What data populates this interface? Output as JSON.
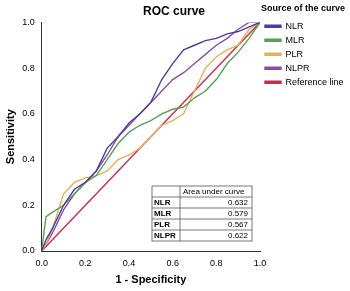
{
  "chart_data": {
    "type": "line",
    "title": "ROC curve",
    "x_label": "1 - Specificity",
    "y_label": "Sensitivity",
    "xlim": [
      0,
      1
    ],
    "ylim": [
      0,
      1
    ],
    "xticks": [
      {
        "value": 0,
        "label": "0.0"
      },
      {
        "value": 0.2,
        "label": "0.2"
      },
      {
        "value": 0.4,
        "label": "0.4"
      },
      {
        "value": 0.6,
        "label": "0.6"
      },
      {
        "value": 0.8,
        "label": "0.8"
      },
      {
        "value": 1,
        "label": "1.0"
      }
    ],
    "yticks": [
      {
        "value": 0,
        "label": "0.0"
      },
      {
        "value": 0.2,
        "label": "0.2"
      },
      {
        "value": 0.4,
        "label": "0.4"
      },
      {
        "value": 0.6,
        "label": "0.6"
      },
      {
        "value": 0.8,
        "label": "0.8"
      },
      {
        "value": 1,
        "label": "1.0"
      }
    ],
    "grid": false,
    "legend": "right",
    "legend_title": "Source of the curve",
    "auc_header": "Area under curve",
    "series": [
      {
        "name": "NLR",
        "color": "#4b3f9e",
        "auc": 0.632,
        "x": [
          0,
          0.02,
          0.05,
          0.1,
          0.15,
          0.2,
          0.25,
          0.3,
          0.35,
          0.4,
          0.45,
          0.5,
          0.55,
          0.6,
          0.65,
          0.7,
          0.75,
          0.8,
          0.85,
          0.9,
          0.95,
          1
        ],
        "values": [
          0,
          0.05,
          0.1,
          0.2,
          0.27,
          0.3,
          0.35,
          0.45,
          0.5,
          0.56,
          0.6,
          0.65,
          0.75,
          0.82,
          0.88,
          0.9,
          0.92,
          0.93,
          0.95,
          0.96,
          0.98,
          1
        ]
      },
      {
        "name": "MLR",
        "color": "#5a9e58",
        "auc": 0.579,
        "x": [
          0,
          0.01,
          0.02,
          0.05,
          0.1,
          0.15,
          0.2,
          0.25,
          0.3,
          0.35,
          0.4,
          0.45,
          0.5,
          0.55,
          0.6,
          0.65,
          0.7,
          0.75,
          0.8,
          0.85,
          0.9,
          0.95,
          1
        ],
        "values": [
          0,
          0.08,
          0.15,
          0.17,
          0.2,
          0.25,
          0.3,
          0.33,
          0.4,
          0.47,
          0.52,
          0.55,
          0.57,
          0.6,
          0.62,
          0.63,
          0.67,
          0.7,
          0.75,
          0.82,
          0.87,
          0.93,
          1
        ]
      },
      {
        "name": "PLR",
        "color": "#e3b062",
        "auc": 0.567,
        "x": [
          0,
          0.02,
          0.05,
          0.1,
          0.15,
          0.2,
          0.25,
          0.3,
          0.35,
          0.4,
          0.45,
          0.5,
          0.55,
          0.6,
          0.65,
          0.7,
          0.75,
          0.8,
          0.85,
          0.9,
          0.95,
          1
        ],
        "values": [
          0,
          0.03,
          0.1,
          0.25,
          0.3,
          0.32,
          0.33,
          0.35,
          0.4,
          0.42,
          0.45,
          0.5,
          0.55,
          0.57,
          0.6,
          0.7,
          0.8,
          0.85,
          0.88,
          0.9,
          0.97,
          1
        ]
      },
      {
        "name": "NLPR",
        "color": "#8a4f9c",
        "auc": 0.622,
        "x": [
          0,
          0.02,
          0.05,
          0.1,
          0.15,
          0.2,
          0.25,
          0.3,
          0.35,
          0.4,
          0.45,
          0.5,
          0.55,
          0.6,
          0.65,
          0.7,
          0.75,
          0.8,
          0.85,
          0.9,
          0.95,
          1
        ],
        "values": [
          0,
          0.03,
          0.08,
          0.18,
          0.25,
          0.3,
          0.35,
          0.42,
          0.5,
          0.55,
          0.6,
          0.65,
          0.7,
          0.75,
          0.78,
          0.82,
          0.86,
          0.9,
          0.93,
          0.97,
          1,
          1
        ]
      },
      {
        "name": "Reference line",
        "color": "#c0304f",
        "x": [
          0,
          1
        ],
        "values": [
          0,
          1
        ]
      }
    ]
  }
}
